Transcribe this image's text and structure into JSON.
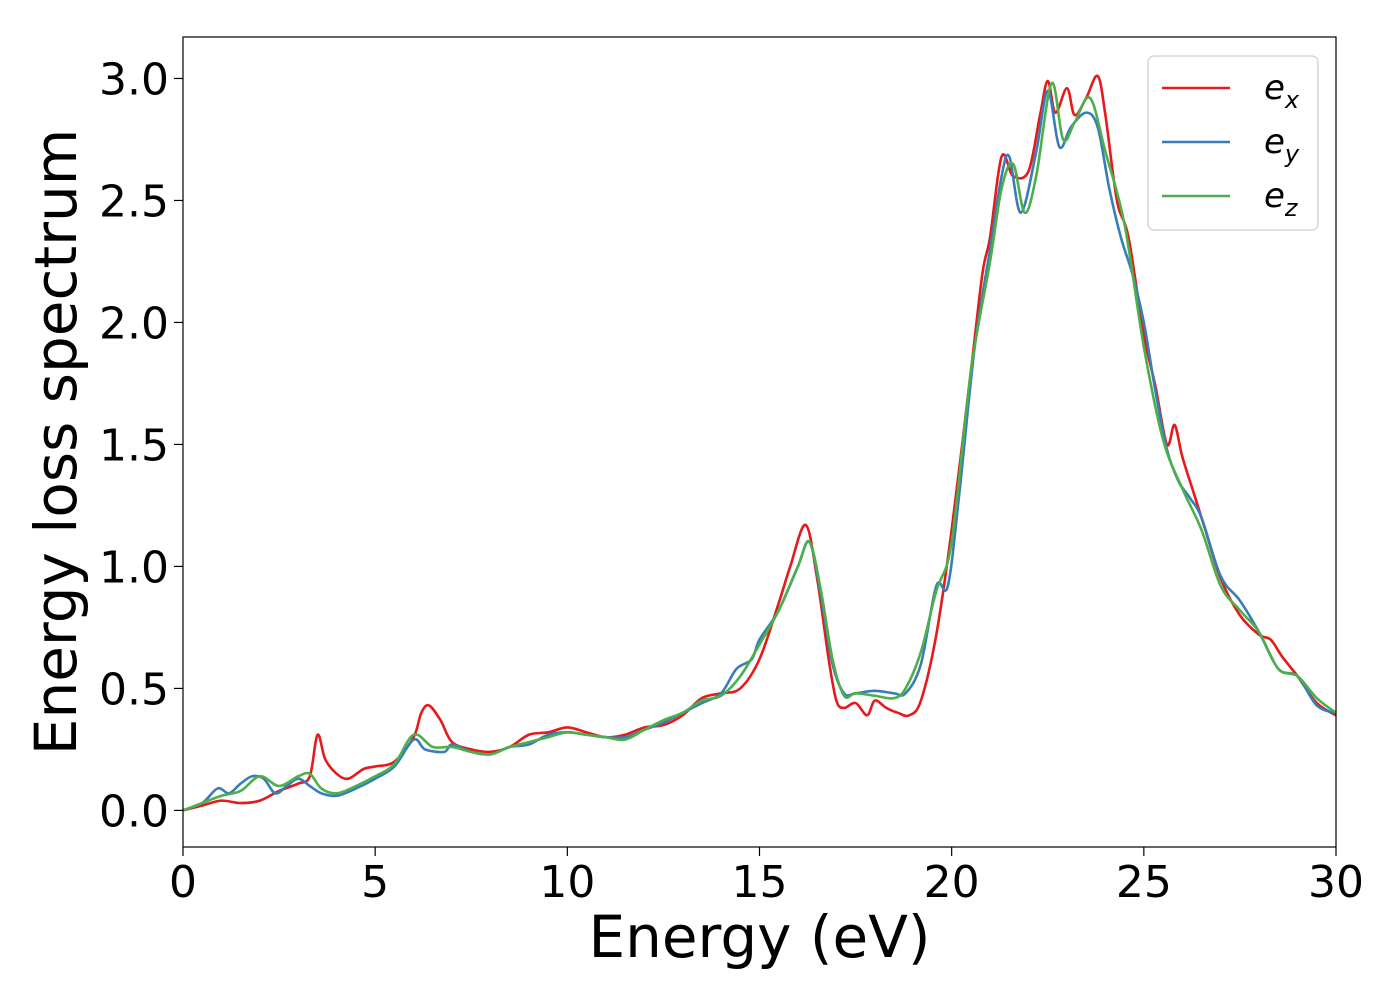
{
  "chart_data": {
    "type": "line",
    "xlabel": "Energy (eV)",
    "ylabel": "Energy loss spectrum",
    "xlim": [
      0,
      30
    ],
    "ylim": [
      -0.15,
      3.17
    ],
    "xticks": [
      0,
      5,
      10,
      15,
      20,
      25,
      30
    ],
    "xtick_labels": [
      "0",
      "5",
      "10",
      "15",
      "20",
      "25",
      "30"
    ],
    "yticks": [
      0.0,
      0.5,
      1.0,
      1.5,
      2.0,
      2.5,
      3.0
    ],
    "ytick_labels": [
      "0.0",
      "0.5",
      "1.0",
      "1.5",
      "2.0",
      "2.5",
      "3.0"
    ],
    "grid": false,
    "legend": {
      "placement": "top-right"
    },
    "series": [
      {
        "name": "e_x",
        "label_main": "e",
        "label_sub": "x",
        "color": "#e41a1c",
        "points": [
          [
            0,
            0
          ],
          [
            0.5,
            0.02
          ],
          [
            1,
            0.04
          ],
          [
            1.5,
            0.03
          ],
          [
            2,
            0.04
          ],
          [
            2.5,
            0.08
          ],
          [
            3,
            0.11
          ],
          [
            3.3,
            0.14
          ],
          [
            3.5,
            0.31
          ],
          [
            3.7,
            0.21
          ],
          [
            4,
            0.15
          ],
          [
            4.3,
            0.13
          ],
          [
            4.7,
            0.17
          ],
          [
            5,
            0.18
          ],
          [
            5.5,
            0.2
          ],
          [
            6,
            0.3
          ],
          [
            6.2,
            0.4
          ],
          [
            6.4,
            0.43
          ],
          [
            6.7,
            0.37
          ],
          [
            7,
            0.28
          ],
          [
            7.5,
            0.25
          ],
          [
            8,
            0.24
          ],
          [
            8.5,
            0.26
          ],
          [
            9,
            0.31
          ],
          [
            9.5,
            0.32
          ],
          [
            10,
            0.34
          ],
          [
            10.5,
            0.32
          ],
          [
            11,
            0.3
          ],
          [
            11.5,
            0.31
          ],
          [
            12,
            0.34
          ],
          [
            12.5,
            0.35
          ],
          [
            13,
            0.39
          ],
          [
            13.5,
            0.46
          ],
          [
            14,
            0.48
          ],
          [
            14.5,
            0.5
          ],
          [
            15,
            0.62
          ],
          [
            15.5,
            0.85
          ],
          [
            15.8,
            1.0
          ],
          [
            16.2,
            1.17
          ],
          [
            16.5,
            0.95
          ],
          [
            16.8,
            0.62
          ],
          [
            17,
            0.45
          ],
          [
            17.2,
            0.42
          ],
          [
            17.5,
            0.44
          ],
          [
            17.8,
            0.39
          ],
          [
            18,
            0.45
          ],
          [
            18.3,
            0.42
          ],
          [
            18.6,
            0.4
          ],
          [
            18.9,
            0.39
          ],
          [
            19.2,
            0.45
          ],
          [
            19.6,
            0.72
          ],
          [
            20,
            1.15
          ],
          [
            20.5,
            1.8
          ],
          [
            20.8,
            2.2
          ],
          [
            21,
            2.35
          ],
          [
            21.3,
            2.68
          ],
          [
            21.6,
            2.6
          ],
          [
            22,
            2.62
          ],
          [
            22.3,
            2.85
          ],
          [
            22.5,
            2.99
          ],
          [
            22.7,
            2.86
          ],
          [
            23,
            2.96
          ],
          [
            23.2,
            2.85
          ],
          [
            23.5,
            2.92
          ],
          [
            23.8,
            3.01
          ],
          [
            24,
            2.85
          ],
          [
            24.3,
            2.5
          ],
          [
            24.6,
            2.35
          ],
          [
            25,
            1.95
          ],
          [
            25.3,
            1.74
          ],
          [
            25.6,
            1.5
          ],
          [
            25.8,
            1.58
          ],
          [
            26,
            1.45
          ],
          [
            26.3,
            1.3
          ],
          [
            26.6,
            1.15
          ],
          [
            27,
            0.95
          ],
          [
            27.5,
            0.8
          ],
          [
            28,
            0.72
          ],
          [
            28.3,
            0.7
          ],
          [
            28.6,
            0.63
          ],
          [
            29,
            0.55
          ],
          [
            29.5,
            0.44
          ],
          [
            30,
            0.39
          ]
        ]
      },
      {
        "name": "e_y",
        "label_main": "e",
        "label_sub": "y",
        "color": "#377eb8",
        "points": [
          [
            0,
            0
          ],
          [
            0.5,
            0.03
          ],
          [
            0.9,
            0.09
          ],
          [
            1.2,
            0.07
          ],
          [
            1.5,
            0.11
          ],
          [
            1.8,
            0.14
          ],
          [
            2.1,
            0.13
          ],
          [
            2.4,
            0.07
          ],
          [
            2.7,
            0.1
          ],
          [
            3,
            0.13
          ],
          [
            3.3,
            0.1
          ],
          [
            3.6,
            0.07
          ],
          [
            4,
            0.06
          ],
          [
            4.5,
            0.09
          ],
          [
            5,
            0.13
          ],
          [
            5.5,
            0.18
          ],
          [
            6,
            0.29
          ],
          [
            6.3,
            0.25
          ],
          [
            6.8,
            0.24
          ],
          [
            7,
            0.27
          ],
          [
            7.5,
            0.24
          ],
          [
            8,
            0.23
          ],
          [
            8.5,
            0.26
          ],
          [
            9,
            0.27
          ],
          [
            9.5,
            0.31
          ],
          [
            10,
            0.32
          ],
          [
            10.5,
            0.31
          ],
          [
            11,
            0.3
          ],
          [
            11.5,
            0.3
          ],
          [
            12,
            0.33
          ],
          [
            12.5,
            0.36
          ],
          [
            13,
            0.4
          ],
          [
            13.5,
            0.44
          ],
          [
            14,
            0.48
          ],
          [
            14.4,
            0.58
          ],
          [
            14.8,
            0.62
          ],
          [
            15,
            0.7
          ],
          [
            15.5,
            0.82
          ],
          [
            16,
            1.0
          ],
          [
            16.3,
            1.1
          ],
          [
            16.6,
            0.88
          ],
          [
            16.9,
            0.6
          ],
          [
            17.2,
            0.48
          ],
          [
            17.5,
            0.48
          ],
          [
            18,
            0.49
          ],
          [
            18.5,
            0.48
          ],
          [
            18.8,
            0.48
          ],
          [
            19.2,
            0.6
          ],
          [
            19.6,
            0.92
          ],
          [
            19.9,
            0.92
          ],
          [
            20.2,
            1.3
          ],
          [
            20.6,
            1.9
          ],
          [
            21,
            2.3
          ],
          [
            21.3,
            2.6
          ],
          [
            21.5,
            2.68
          ],
          [
            21.8,
            2.45
          ],
          [
            22.2,
            2.7
          ],
          [
            22.5,
            2.95
          ],
          [
            22.8,
            2.72
          ],
          [
            23.1,
            2.8
          ],
          [
            23.5,
            2.86
          ],
          [
            23.8,
            2.8
          ],
          [
            24.1,
            2.55
          ],
          [
            24.4,
            2.35
          ],
          [
            24.7,
            2.2
          ],
          [
            25,
            2.0
          ],
          [
            25.3,
            1.72
          ],
          [
            25.6,
            1.48
          ],
          [
            25.9,
            1.35
          ],
          [
            26.2,
            1.28
          ],
          [
            26.5,
            1.2
          ],
          [
            27,
            0.96
          ],
          [
            27.5,
            0.86
          ],
          [
            28,
            0.73
          ],
          [
            28.5,
            0.58
          ],
          [
            29,
            0.55
          ],
          [
            29.5,
            0.43
          ],
          [
            30,
            0.4
          ]
        ]
      },
      {
        "name": "e_z",
        "label_main": "e",
        "label_sub": "z",
        "color": "#4daf4a",
        "points": [
          [
            0,
            0
          ],
          [
            0.5,
            0.03
          ],
          [
            1,
            0.06
          ],
          [
            1.5,
            0.08
          ],
          [
            2,
            0.14
          ],
          [
            2.5,
            0.1
          ],
          [
            3,
            0.14
          ],
          [
            3.3,
            0.15
          ],
          [
            3.6,
            0.09
          ],
          [
            4,
            0.07
          ],
          [
            4.5,
            0.1
          ],
          [
            5,
            0.14
          ],
          [
            5.5,
            0.19
          ],
          [
            6,
            0.31
          ],
          [
            6.5,
            0.26
          ],
          [
            7,
            0.26
          ],
          [
            7.5,
            0.24
          ],
          [
            8,
            0.23
          ],
          [
            8.5,
            0.26
          ],
          [
            9,
            0.28
          ],
          [
            9.5,
            0.3
          ],
          [
            10,
            0.32
          ],
          [
            10.5,
            0.31
          ],
          [
            11,
            0.3
          ],
          [
            11.5,
            0.29
          ],
          [
            12,
            0.33
          ],
          [
            12.5,
            0.37
          ],
          [
            13,
            0.4
          ],
          [
            13.5,
            0.45
          ],
          [
            14,
            0.47
          ],
          [
            14.5,
            0.55
          ],
          [
            15,
            0.68
          ],
          [
            15.5,
            0.82
          ],
          [
            16,
            1.0
          ],
          [
            16.3,
            1.1
          ],
          [
            16.6,
            0.9
          ],
          [
            16.9,
            0.62
          ],
          [
            17.2,
            0.47
          ],
          [
            17.5,
            0.48
          ],
          [
            18,
            0.47
          ],
          [
            18.5,
            0.46
          ],
          [
            18.8,
            0.5
          ],
          [
            19.2,
            0.65
          ],
          [
            19.6,
            0.9
          ],
          [
            20,
            1.1
          ],
          [
            20.5,
            1.8
          ],
          [
            21,
            2.25
          ],
          [
            21.3,
            2.55
          ],
          [
            21.6,
            2.65
          ],
          [
            21.9,
            2.45
          ],
          [
            22.2,
            2.6
          ],
          [
            22.6,
            2.98
          ],
          [
            22.9,
            2.75
          ],
          [
            23.2,
            2.82
          ],
          [
            23.6,
            2.92
          ],
          [
            24,
            2.7
          ],
          [
            24.5,
            2.4
          ],
          [
            25,
            1.9
          ],
          [
            25.5,
            1.52
          ],
          [
            26,
            1.32
          ],
          [
            26.5,
            1.15
          ],
          [
            27,
            0.92
          ],
          [
            27.5,
            0.82
          ],
          [
            28,
            0.73
          ],
          [
            28.5,
            0.58
          ],
          [
            29,
            0.55
          ],
          [
            29.5,
            0.46
          ],
          [
            30,
            0.4
          ]
        ]
      }
    ]
  }
}
